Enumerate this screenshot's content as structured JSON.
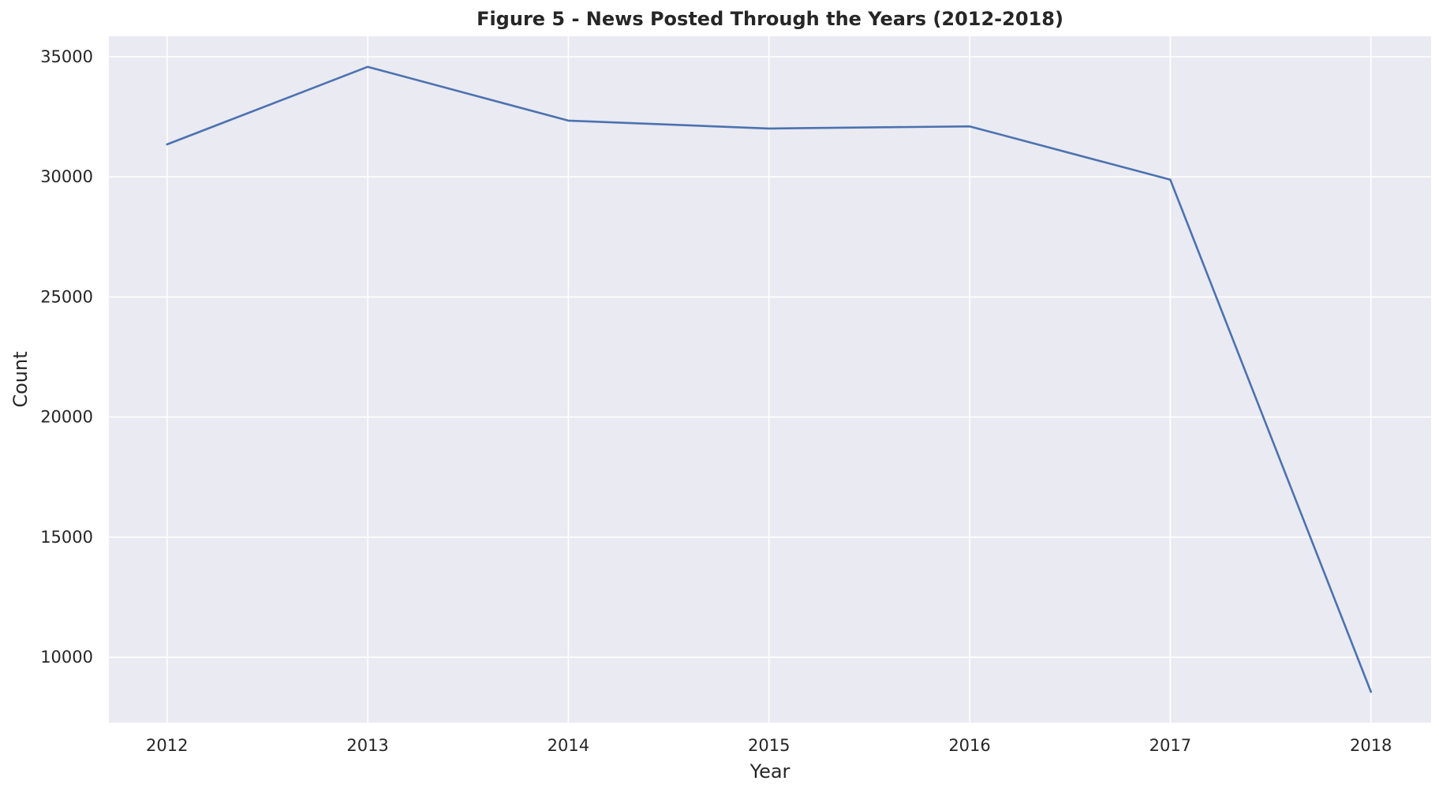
{
  "chart_data": {
    "type": "line",
    "title": "Figure 5 - News Posted Through the Years (2012-2018)",
    "xlabel": "Year",
    "ylabel": "Count",
    "x": [
      2012,
      2013,
      2014,
      2015,
      2016,
      2017,
      2018
    ],
    "series": [
      {
        "values": [
          31350,
          34580,
          32340,
          32010,
          32100,
          29880,
          8560
        ],
        "color": "#4c72b0"
      }
    ],
    "xlim": [
      2011.71,
      2018.3
    ],
    "ylim": [
      7280,
      35850
    ],
    "xticks": [
      2012,
      2013,
      2014,
      2015,
      2016,
      2017,
      2018
    ],
    "xtick_labels": [
      "2012",
      "2013",
      "2014",
      "2015",
      "2016",
      "2017",
      "2018"
    ],
    "yticks": [
      10000,
      15000,
      20000,
      25000,
      30000,
      35000
    ],
    "ytick_labels": [
      "10000",
      "15000",
      "20000",
      "25000",
      "30000",
      "35000"
    ],
    "grid": true,
    "legend": "none",
    "colors": {
      "background": "#eaeaf2",
      "grid": "#ffffff",
      "line": "#4c72b0"
    }
  }
}
